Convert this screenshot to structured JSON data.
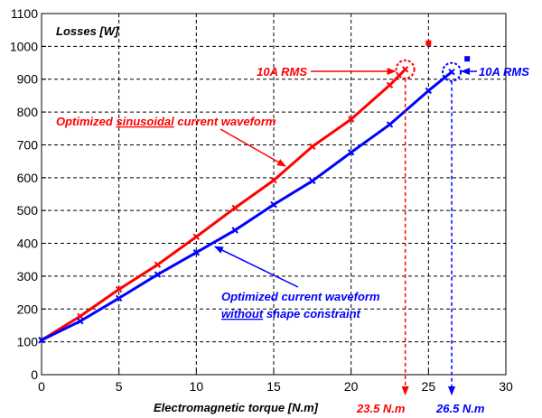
{
  "chart_data": {
    "type": "line",
    "title": "",
    "ylabel": "Losses [W]",
    "xlabel": "Electromagnetic torque [N.m]",
    "xlim": [
      0,
      30
    ],
    "ylim": [
      0,
      1100
    ],
    "x_ticks": [
      0,
      5,
      10,
      15,
      20,
      25,
      30
    ],
    "y_ticks": [
      0,
      100,
      200,
      300,
      400,
      500,
      600,
      700,
      800,
      900,
      1000,
      1100
    ],
    "grid": true,
    "series": [
      {
        "color": "#ff0000",
        "x": [
          0,
          2.5,
          5,
          7.5,
          10,
          12.5,
          15,
          17.5,
          20,
          22.5,
          23.5
        ],
        "y": [
          105,
          178,
          260,
          335,
          420,
          508,
          592,
          695,
          778,
          882,
          930
        ],
        "outlier": {
          "x": 25,
          "y": 1010
        }
      },
      {
        "color": "#0000ff",
        "x": [
          0,
          2.5,
          5,
          7.5,
          10,
          12.5,
          15,
          17.5,
          20,
          22.5,
          25,
          26.5
        ],
        "y": [
          105,
          163,
          233,
          305,
          372,
          440,
          518,
          590,
          677,
          762,
          865,
          922
        ],
        "outlier": {
          "x": 27.5,
          "y": 962
        }
      }
    ],
    "annotations": {
      "red_rms": "10A RMS",
      "blue_rms": "10A RMS",
      "red_torque": "23.5 N.m",
      "blue_torque": "26.5 N.m",
      "red_label_pre": "Optimized ",
      "red_label_underlined": "sinusoidal",
      "red_label_post": " current waveform",
      "blue_label_line1": "Optimized current waveform",
      "blue_label_underlined": "without",
      "blue_label_post": " shape constraint"
    }
  }
}
